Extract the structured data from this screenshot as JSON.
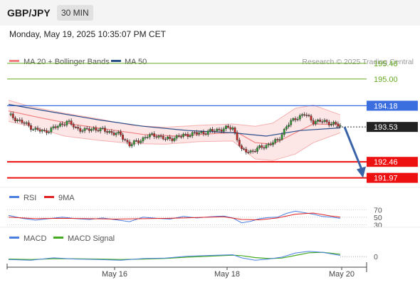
{
  "header": {
    "pair": "GBP/JPY",
    "timeframe": "30 MIN",
    "datetime": "Monday, May 19, 2025 10:35:07 PM CET"
  },
  "colors": {
    "bollinger": "#f08080",
    "bollinger_fill": "#fde2e2",
    "ma50": "#2b4f8a",
    "resistance_green": "#66aa22",
    "pivot_blue": "#3b6fe0",
    "support_red": "#ee1111",
    "candle_up": "#2e9c2e",
    "candle_down": "#c62828",
    "arrow": "#3b64a8",
    "rsi": "#4a7fe0",
    "rsi_ma": "#e02020",
    "macd": "#4a7fe0",
    "macd_signal": "#44aa22"
  },
  "chart_data": {
    "type": "candlestick",
    "title": "GBP/JPY 30 MIN",
    "legend": [
      {
        "name": "MA 20 + Bollinger Bands",
        "color": "#f08080"
      },
      {
        "name": "MA 50",
        "color": "#2b4f8a"
      }
    ],
    "copyright": "Research © 2025 Trading Central",
    "x_ticks": [
      "May 16",
      "May 18",
      "May 20"
    ],
    "current_price": 193.53,
    "y_range": [
      191.7,
      196.0
    ],
    "levels": [
      {
        "value": 195.48,
        "label": "195.48",
        "kind": "resistance"
      },
      {
        "value": 195.0,
        "label": "195.00",
        "kind": "resistance"
      },
      {
        "value": 194.18,
        "label": "194.18",
        "kind": "pivot"
      },
      {
        "value": 192.46,
        "label": "192.46",
        "kind": "support"
      },
      {
        "value": 191.97,
        "label": "191.97",
        "kind": "support"
      }
    ],
    "arrow": {
      "from": 193.53,
      "to": 191.97,
      "direction": "down"
    },
    "close_path": [
      [
        0,
        193.9
      ],
      [
        4,
        193.75
      ],
      [
        8,
        193.6
      ],
      [
        12,
        193.45
      ],
      [
        16,
        193.38
      ],
      [
        22,
        193.55
      ],
      [
        26,
        193.7
      ],
      [
        30,
        193.5
      ],
      [
        34,
        193.42
      ],
      [
        38,
        193.48
      ],
      [
        44,
        193.4
      ],
      [
        50,
        193.28
      ],
      [
        54,
        192.98
      ],
      [
        58,
        193.1
      ],
      [
        62,
        193.25
      ],
      [
        66,
        193.28
      ],
      [
        70,
        193.15
      ],
      [
        74,
        193.2
      ],
      [
        80,
        193.3
      ],
      [
        86,
        193.35
      ],
      [
        92,
        193.42
      ],
      [
        96,
        193.48
      ],
      [
        100,
        193.5
      ],
      [
        102,
        193.18
      ],
      [
        104,
        192.8
      ],
      [
        108,
        192.78
      ],
      [
        112,
        192.88
      ],
      [
        116,
        193.0
      ],
      [
        120,
        193.1
      ],
      [
        124,
        193.55
      ],
      [
        128,
        193.8
      ],
      [
        132,
        193.92
      ],
      [
        136,
        193.7
      ],
      [
        140,
        193.7
      ],
      [
        144,
        193.65
      ],
      [
        148,
        193.55
      ]
    ],
    "ma20_path": [
      [
        0,
        194.02
      ],
      [
        15,
        193.8
      ],
      [
        30,
        193.6
      ],
      [
        45,
        193.45
      ],
      [
        60,
        193.3
      ],
      [
        75,
        193.25
      ],
      [
        90,
        193.32
      ],
      [
        102,
        193.36
      ],
      [
        110,
        193.05
      ],
      [
        118,
        193.0
      ],
      [
        128,
        193.35
      ],
      [
        136,
        193.62
      ],
      [
        148,
        193.6
      ]
    ],
    "bb_upper_path": [
      [
        0,
        194.35
      ],
      [
        10,
        194.15
      ],
      [
        25,
        193.95
      ],
      [
        40,
        193.78
      ],
      [
        55,
        193.58
      ],
      [
        70,
        193.52
      ],
      [
        85,
        193.58
      ],
      [
        100,
        193.62
      ],
      [
        110,
        193.55
      ],
      [
        118,
        193.65
      ],
      [
        128,
        194.1
      ],
      [
        136,
        194.2
      ],
      [
        148,
        193.9
      ]
    ],
    "bb_lower_path": [
      [
        0,
        193.7
      ],
      [
        10,
        193.55
      ],
      [
        25,
        193.25
      ],
      [
        40,
        193.12
      ],
      [
        55,
        193.02
      ],
      [
        70,
        193.0
      ],
      [
        85,
        193.08
      ],
      [
        100,
        193.1
      ],
      [
        110,
        192.55
      ],
      [
        118,
        192.5
      ],
      [
        128,
        192.7
      ],
      [
        136,
        193.05
      ],
      [
        148,
        193.35
      ]
    ],
    "ma50_path": [
      [
        0,
        194.22
      ],
      [
        20,
        193.98
      ],
      [
        40,
        193.75
      ],
      [
        60,
        193.55
      ],
      [
        80,
        193.42
      ],
      [
        100,
        193.35
      ],
      [
        115,
        193.25
      ],
      [
        130,
        193.42
      ],
      [
        148,
        193.5
      ]
    ],
    "rsi": {
      "legend": [
        {
          "name": "RSI",
          "color": "#4a7fe0"
        },
        {
          "name": "9MA",
          "color": "#e02020"
        }
      ],
      "levels": [
        70,
        50,
        30
      ],
      "y_range": [
        25,
        80
      ],
      "rsi_path": [
        [
          0,
          55
        ],
        [
          6,
          47
        ],
        [
          12,
          42
        ],
        [
          18,
          46
        ],
        [
          24,
          50
        ],
        [
          30,
          46
        ],
        [
          36,
          44
        ],
        [
          42,
          48
        ],
        [
          48,
          43
        ],
        [
          54,
          38
        ],
        [
          60,
          50
        ],
        [
          66,
          47
        ],
        [
          72,
          45
        ],
        [
          78,
          52
        ],
        [
          84,
          48
        ],
        [
          90,
          51
        ],
        [
          96,
          53
        ],
        [
          100,
          48
        ],
        [
          104,
          35
        ],
        [
          108,
          39
        ],
        [
          112,
          46
        ],
        [
          116,
          49
        ],
        [
          120,
          50
        ],
        [
          124,
          60
        ],
        [
          128,
          66
        ],
        [
          132,
          62
        ],
        [
          136,
          58
        ],
        [
          140,
          52
        ],
        [
          144,
          50
        ],
        [
          148,
          47
        ]
      ],
      "ma_path": [
        [
          0,
          50
        ],
        [
          12,
          46
        ],
        [
          24,
          47
        ],
        [
          36,
          46
        ],
        [
          48,
          45
        ],
        [
          60,
          46
        ],
        [
          72,
          47
        ],
        [
          84,
          49
        ],
        [
          96,
          51
        ],
        [
          104,
          44
        ],
        [
          112,
          43
        ],
        [
          120,
          48
        ],
        [
          128,
          58
        ],
        [
          136,
          61
        ],
        [
          144,
          53
        ],
        [
          148,
          50
        ]
      ]
    },
    "macd": {
      "legend": [
        {
          "name": "MACD",
          "color": "#4a7fe0"
        },
        {
          "name": "MACD Signal",
          "color": "#44aa22"
        }
      ],
      "zero_label": "0",
      "y_range": [
        -0.35,
        0.45
      ],
      "macd_path": [
        [
          0,
          -0.12
        ],
        [
          10,
          -0.15
        ],
        [
          20,
          -0.05
        ],
        [
          30,
          -0.1
        ],
        [
          40,
          -0.12
        ],
        [
          50,
          -0.15
        ],
        [
          60,
          -0.08
        ],
        [
          70,
          -0.06
        ],
        [
          80,
          0.02
        ],
        [
          90,
          0.05
        ],
        [
          100,
          0.08
        ],
        [
          104,
          -0.05
        ],
        [
          110,
          -0.15
        ],
        [
          116,
          -0.1
        ],
        [
          122,
          -0.02
        ],
        [
          128,
          0.15
        ],
        [
          134,
          0.22
        ],
        [
          140,
          0.18
        ],
        [
          148,
          0.05
        ]
      ],
      "signal_path": [
        [
          0,
          -0.1
        ],
        [
          10,
          -0.12
        ],
        [
          20,
          -0.09
        ],
        [
          30,
          -0.09
        ],
        [
          40,
          -0.1
        ],
        [
          50,
          -0.12
        ],
        [
          60,
          -0.1
        ],
        [
          70,
          -0.07
        ],
        [
          80,
          -0.02
        ],
        [
          90,
          0.02
        ],
        [
          100,
          0.06
        ],
        [
          104,
          0.04
        ],
        [
          110,
          -0.04
        ],
        [
          116,
          -0.08
        ],
        [
          122,
          -0.06
        ],
        [
          128,
          0.05
        ],
        [
          134,
          0.16
        ],
        [
          140,
          0.18
        ],
        [
          148,
          0.1
        ]
      ]
    }
  }
}
